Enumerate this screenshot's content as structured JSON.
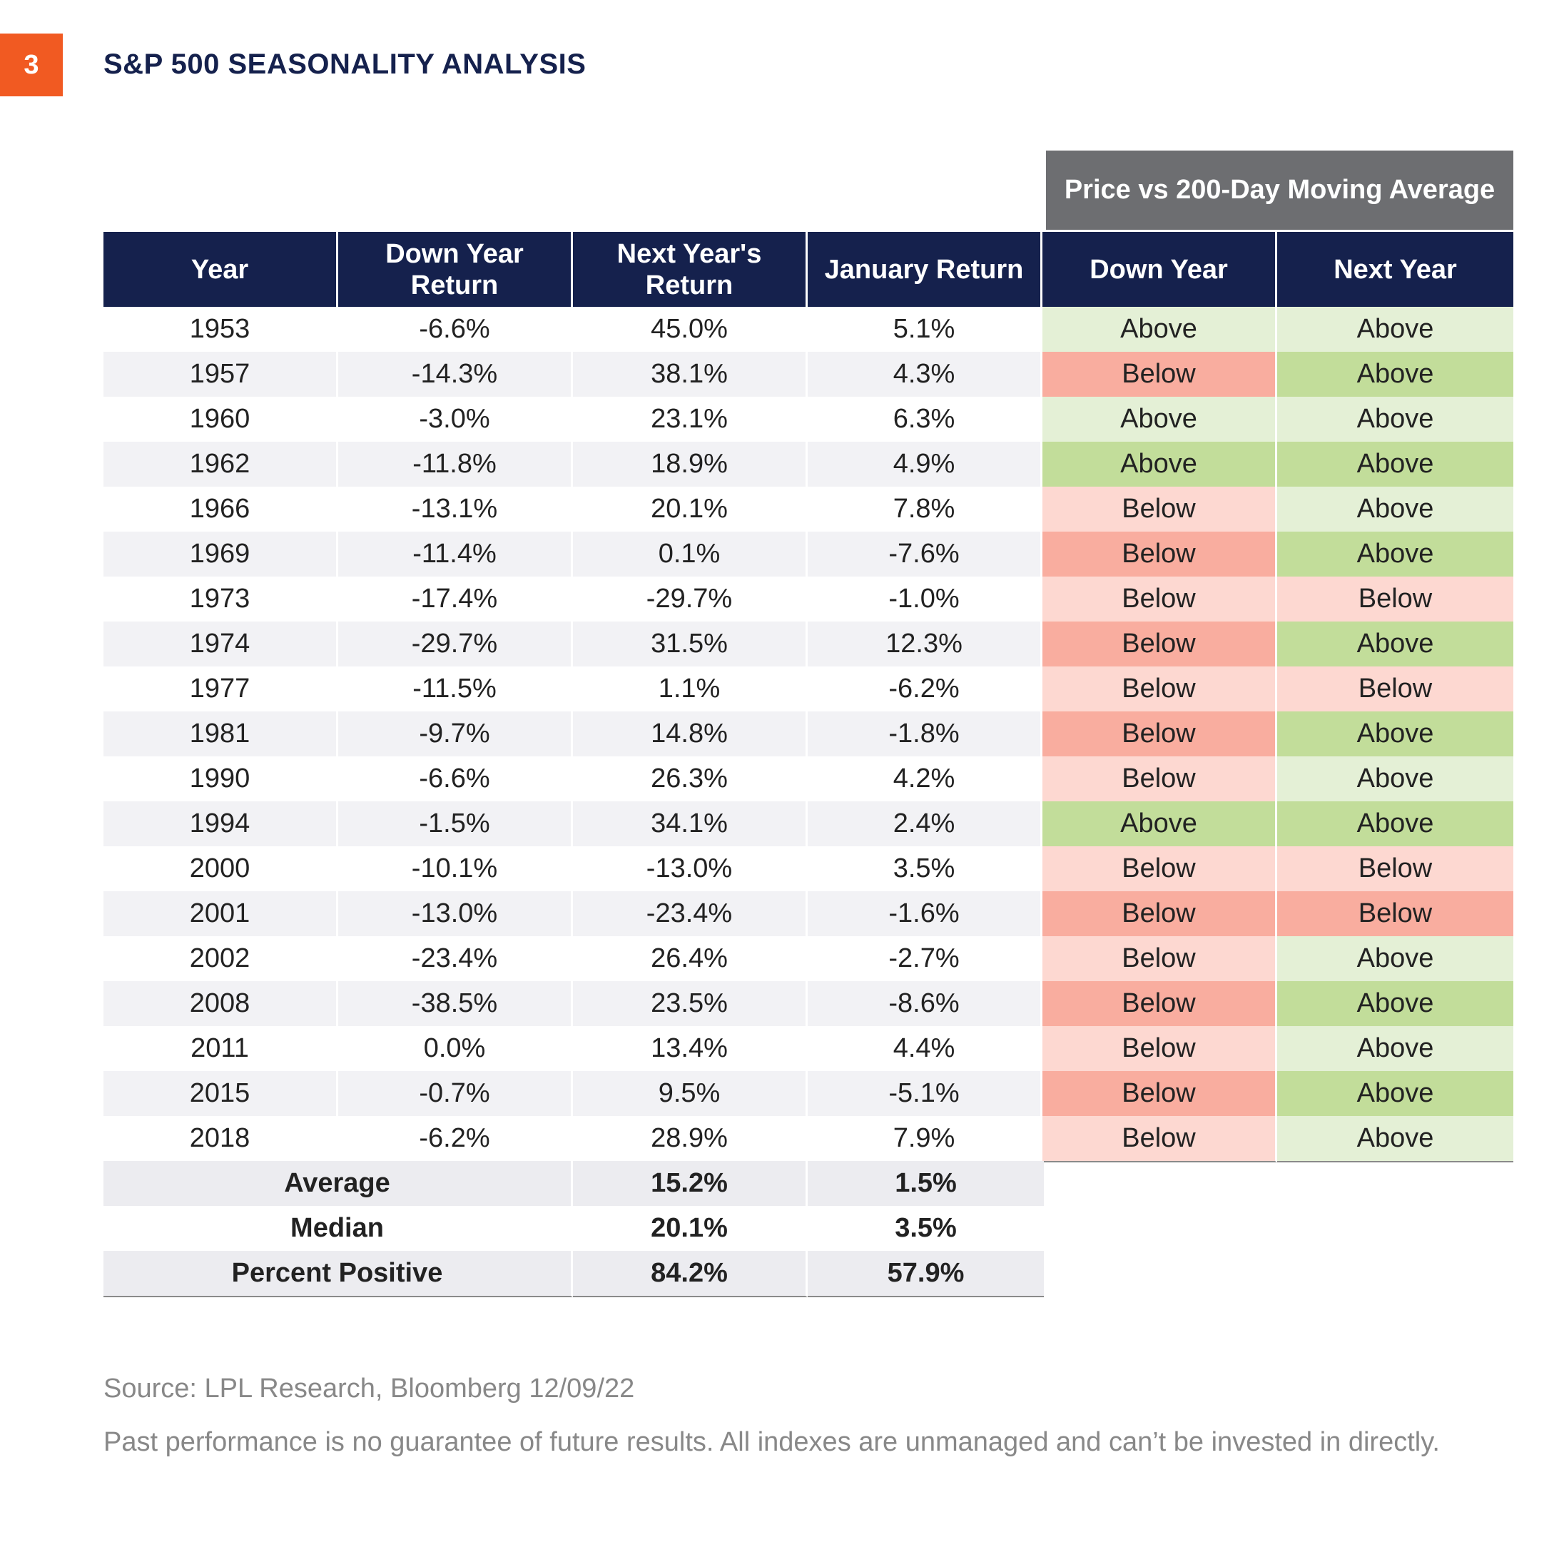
{
  "badge": "3",
  "title": "S&P 500 SEASONALITY ANALYSIS",
  "group_header": "Price vs 200-Day Moving Average",
  "chart_data": {
    "type": "table",
    "columns": [
      "Year",
      "Down Year Return",
      "Next Year's Return",
      "January Return",
      "Down Year",
      "Next Year"
    ],
    "rows": [
      {
        "year": "1953",
        "down_year_return": "-6.6%",
        "next_year_return": "45.0%",
        "january_return": "5.1%",
        "down_year_ma": "Above",
        "down_year_ma_tone": "above-light",
        "next_year_ma": "Above",
        "next_year_ma_tone": "above-light"
      },
      {
        "year": "1957",
        "down_year_return": "-14.3%",
        "next_year_return": "38.1%",
        "january_return": "4.3%",
        "down_year_ma": "Below",
        "down_year_ma_tone": "below-strong",
        "next_year_ma": "Above",
        "next_year_ma_tone": "above-strong"
      },
      {
        "year": "1960",
        "down_year_return": "-3.0%",
        "next_year_return": "23.1%",
        "january_return": "6.3%",
        "down_year_ma": "Above",
        "down_year_ma_tone": "above-light",
        "next_year_ma": "Above",
        "next_year_ma_tone": "above-light"
      },
      {
        "year": "1962",
        "down_year_return": "-11.8%",
        "next_year_return": "18.9%",
        "january_return": "4.9%",
        "down_year_ma": "Above",
        "down_year_ma_tone": "above-strong",
        "next_year_ma": "Above",
        "next_year_ma_tone": "above-strong"
      },
      {
        "year": "1966",
        "down_year_return": "-13.1%",
        "next_year_return": "20.1%",
        "january_return": "7.8%",
        "down_year_ma": "Below",
        "down_year_ma_tone": "below-light",
        "next_year_ma": "Above",
        "next_year_ma_tone": "above-light"
      },
      {
        "year": "1969",
        "down_year_return": "-11.4%",
        "next_year_return": "0.1%",
        "january_return": "-7.6%",
        "down_year_ma": "Below",
        "down_year_ma_tone": "below-strong",
        "next_year_ma": "Above",
        "next_year_ma_tone": "above-strong"
      },
      {
        "year": "1973",
        "down_year_return": "-17.4%",
        "next_year_return": "-29.7%",
        "january_return": "-1.0%",
        "down_year_ma": "Below",
        "down_year_ma_tone": "below-light",
        "next_year_ma": "Below",
        "next_year_ma_tone": "below-light"
      },
      {
        "year": "1974",
        "down_year_return": "-29.7%",
        "next_year_return": "31.5%",
        "january_return": "12.3%",
        "down_year_ma": "Below",
        "down_year_ma_tone": "below-strong",
        "next_year_ma": "Above",
        "next_year_ma_tone": "above-strong"
      },
      {
        "year": "1977",
        "down_year_return": "-11.5%",
        "next_year_return": "1.1%",
        "january_return": "-6.2%",
        "down_year_ma": "Below",
        "down_year_ma_tone": "below-light",
        "next_year_ma": "Below",
        "next_year_ma_tone": "below-light"
      },
      {
        "year": "1981",
        "down_year_return": "-9.7%",
        "next_year_return": "14.8%",
        "january_return": "-1.8%",
        "down_year_ma": "Below",
        "down_year_ma_tone": "below-strong",
        "next_year_ma": "Above",
        "next_year_ma_tone": "above-strong"
      },
      {
        "year": "1990",
        "down_year_return": "-6.6%",
        "next_year_return": "26.3%",
        "january_return": "4.2%",
        "down_year_ma": "Below",
        "down_year_ma_tone": "below-light",
        "next_year_ma": "Above",
        "next_year_ma_tone": "above-light"
      },
      {
        "year": "1994",
        "down_year_return": "-1.5%",
        "next_year_return": "34.1%",
        "january_return": "2.4%",
        "down_year_ma": "Above",
        "down_year_ma_tone": "above-strong",
        "next_year_ma": "Above",
        "next_year_ma_tone": "above-strong"
      },
      {
        "year": "2000",
        "down_year_return": "-10.1%",
        "next_year_return": "-13.0%",
        "january_return": "3.5%",
        "down_year_ma": "Below",
        "down_year_ma_tone": "below-light",
        "next_year_ma": "Below",
        "next_year_ma_tone": "below-light"
      },
      {
        "year": "2001",
        "down_year_return": "-13.0%",
        "next_year_return": "-23.4%",
        "january_return": "-1.6%",
        "down_year_ma": "Below",
        "down_year_ma_tone": "below-strong",
        "next_year_ma": "Below",
        "next_year_ma_tone": "below-strong"
      },
      {
        "year": "2002",
        "down_year_return": "-23.4%",
        "next_year_return": "26.4%",
        "january_return": "-2.7%",
        "down_year_ma": "Below",
        "down_year_ma_tone": "below-light",
        "next_year_ma": "Above",
        "next_year_ma_tone": "above-light"
      },
      {
        "year": "2008",
        "down_year_return": "-38.5%",
        "next_year_return": "23.5%",
        "january_return": "-8.6%",
        "down_year_ma": "Below",
        "down_year_ma_tone": "below-strong",
        "next_year_ma": "Above",
        "next_year_ma_tone": "above-strong"
      },
      {
        "year": "2011",
        "down_year_return": "0.0%",
        "next_year_return": "13.4%",
        "january_return": "4.4%",
        "down_year_ma": "Below",
        "down_year_ma_tone": "below-light",
        "next_year_ma": "Above",
        "next_year_ma_tone": "above-light"
      },
      {
        "year": "2015",
        "down_year_return": "-0.7%",
        "next_year_return": "9.5%",
        "january_return": "-5.1%",
        "down_year_ma": "Below",
        "down_year_ma_tone": "below-strong",
        "next_year_ma": "Above",
        "next_year_ma_tone": "above-strong"
      },
      {
        "year": "2018",
        "down_year_return": "-6.2%",
        "next_year_return": "28.9%",
        "january_return": "7.9%",
        "down_year_ma": "Below",
        "down_year_ma_tone": "below-light",
        "next_year_ma": "Above",
        "next_year_ma_tone": "above-light"
      }
    ],
    "summary": [
      {
        "label": "Average",
        "next_year_return": "15.2%",
        "january_return": "1.5%"
      },
      {
        "label": "Median",
        "next_year_return": "20.1%",
        "january_return": "3.5%"
      },
      {
        "label": "Percent Positive",
        "next_year_return": "84.2%",
        "january_return": "57.9%"
      }
    ],
    "colors": {
      "header_navy": "#15214d",
      "group_header_gray": "#6d6e71",
      "badge_orange": "#f15a22",
      "above-light": "#e4f0d6",
      "above-strong": "#c2dd9a",
      "below-light": "#fdd8d1",
      "below-strong": "#f9ad9f"
    }
  },
  "headers": {
    "year": "Year",
    "down_year_return_l1": "Down Year",
    "down_year_return_l2": "Return",
    "next_year_return_l1": "Next Year's",
    "next_year_return_l2": "Return",
    "january_return": "January Return",
    "down_year": "Down Year",
    "next_year": "Next Year"
  },
  "footer": {
    "source": "Source: LPL Research, Bloomberg  12/09/22",
    "disclaimer": "Past performance is no guarantee of future results. All indexes are unmanaged and can’t be invested in directly."
  }
}
